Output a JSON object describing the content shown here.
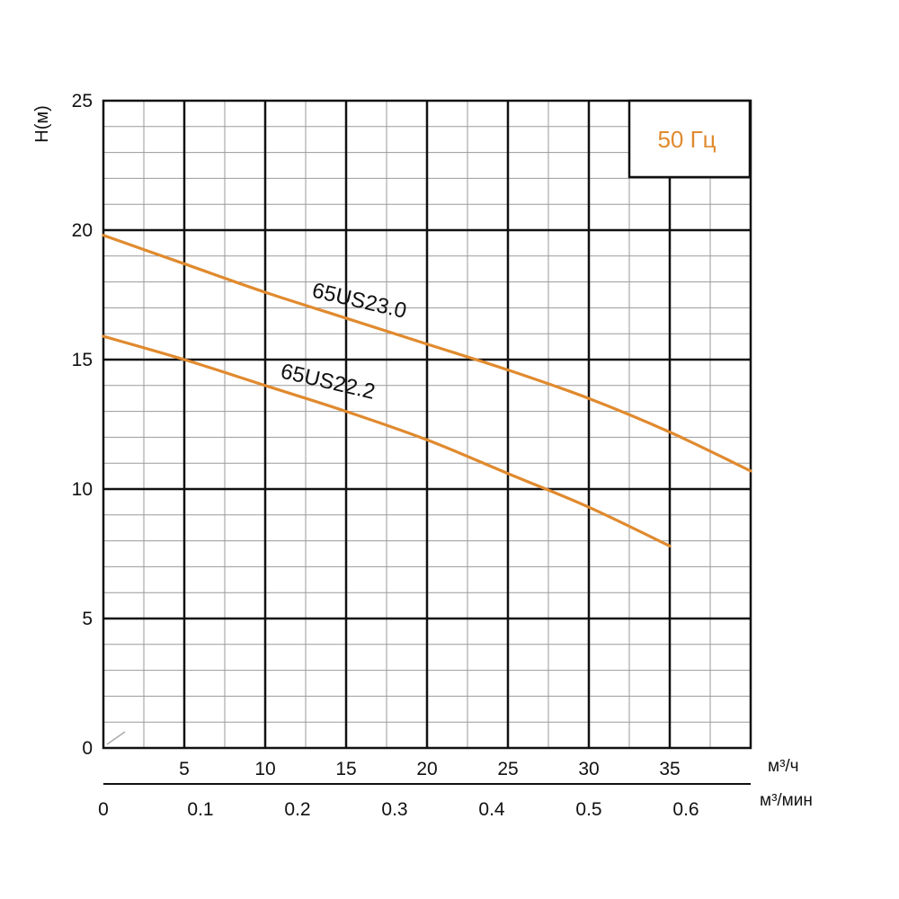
{
  "chart_data": {
    "type": "line",
    "frequency_label": "50 Гц",
    "ylabel": "H(м)",
    "xlabel": "м³/ч",
    "xlabel2": "м³/мин",
    "ylim": [
      0,
      25
    ],
    "xlim": [
      0,
      40
    ],
    "y_ticks": [
      "0",
      "5",
      "10",
      "15",
      "20",
      "25"
    ],
    "x_ticks": [
      "5",
      "10",
      "15",
      "20",
      "25",
      "30",
      "35"
    ],
    "x2_ticks": [
      "0",
      "0.1",
      "0.2",
      "0.3",
      "0.4",
      "0.5",
      "0.6"
    ],
    "grid": true,
    "series": [
      {
        "name": "65US23.0",
        "color": "#E08A2E",
        "x": [
          0,
          5,
          10,
          15,
          20,
          25,
          30,
          35,
          40
        ],
        "y": [
          19.8,
          18.7,
          17.6,
          16.6,
          15.6,
          14.6,
          13.5,
          12.2,
          10.7
        ]
      },
      {
        "name": "65US22.2",
        "color": "#E08A2E",
        "x": [
          0,
          5,
          10,
          15,
          20,
          25,
          30,
          35
        ],
        "y": [
          15.9,
          15.0,
          14.0,
          13.0,
          11.9,
          10.6,
          9.3,
          7.8
        ]
      }
    ]
  }
}
